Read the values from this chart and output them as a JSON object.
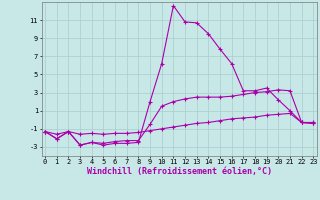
{
  "xlabel": "Windchill (Refroidissement éolien,°C)",
  "background_color": "#c8e8e8",
  "grid_color": "#a8cccc",
  "line_color": "#aa00aa",
  "x_hours": [
    0,
    1,
    2,
    3,
    4,
    5,
    6,
    7,
    8,
    9,
    10,
    11,
    12,
    13,
    14,
    15,
    16,
    17,
    18,
    19,
    20,
    21,
    22,
    23
  ],
  "y_temp": [
    -1.3,
    -2.1,
    -1.3,
    -2.8,
    -2.5,
    -2.8,
    -2.6,
    -2.6,
    -2.5,
    2.0,
    6.2,
    12.6,
    10.8,
    10.7,
    9.5,
    7.8,
    6.2,
    3.2,
    3.2,
    3.5,
    2.2,
    1.0,
    -0.3,
    -0.3
  ],
  "y_mid": [
    -1.3,
    -2.1,
    -1.3,
    -2.8,
    -2.5,
    -2.6,
    -2.4,
    -2.3,
    -2.3,
    -0.5,
    1.5,
    2.0,
    2.3,
    2.5,
    2.5,
    2.5,
    2.6,
    2.8,
    3.0,
    3.1,
    3.3,
    3.2,
    -0.3,
    -0.4
  ],
  "y_low": [
    -1.3,
    -1.6,
    -1.3,
    -1.6,
    -1.5,
    -1.6,
    -1.5,
    -1.5,
    -1.4,
    -1.2,
    -1.0,
    -0.8,
    -0.6,
    -0.4,
    -0.3,
    -0.1,
    0.1,
    0.2,
    0.3,
    0.5,
    0.6,
    0.7,
    -0.3,
    -0.4
  ],
  "ylim": [
    -4,
    13
  ],
  "xlim_min": -0.3,
  "xlim_max": 23.3,
  "yticks": [
    -3,
    -1,
    1,
    3,
    5,
    7,
    9,
    11
  ],
  "xticks": [
    0,
    1,
    2,
    3,
    4,
    5,
    6,
    7,
    8,
    9,
    10,
    11,
    12,
    13,
    14,
    15,
    16,
    17,
    18,
    19,
    20,
    21,
    22,
    23
  ],
  "tick_fontsize": 5.0,
  "xlabel_fontsize": 6.0
}
